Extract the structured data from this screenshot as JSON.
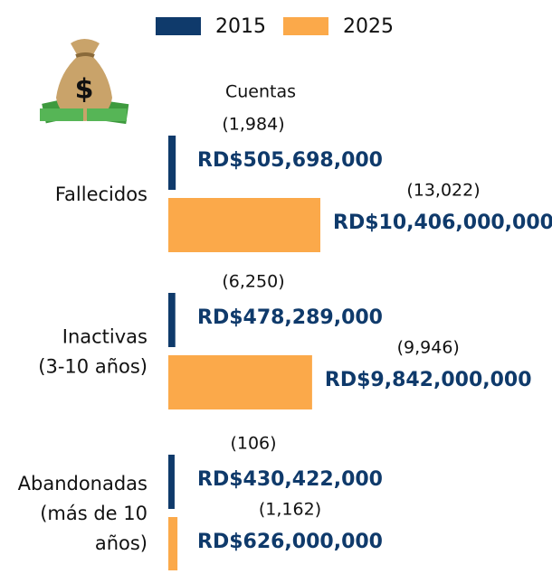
{
  "chart_data": {
    "type": "barh",
    "annotation": "Cuentas",
    "categories": [
      "Fallecidos",
      "Inactivas\n(3-10 años)",
      "Abandonadas\n(más de 10\naños)"
    ],
    "series": [
      {
        "name": "2015",
        "color": "#0f3a6b",
        "values": [
          505698000,
          478289000,
          430422000
        ],
        "value_labels": [
          "RD$505,698,000",
          "RD$478,289,000",
          "RD$430,422,000"
        ],
        "count_labels": [
          "(1,984)",
          "(6,250)",
          "(106)"
        ]
      },
      {
        "name": "2025",
        "color": "#fba94a",
        "values": [
          10406000000,
          9842000000,
          626000000
        ],
        "value_labels": [
          "RD$10,406,000,000",
          "RD$9,842,000,000",
          "RD$626,000,000"
        ],
        "count_labels": [
          "(13,022)",
          "(9,946)",
          "(1,162)"
        ]
      }
    ],
    "xlim": [
      0,
      10406000000
    ]
  }
}
